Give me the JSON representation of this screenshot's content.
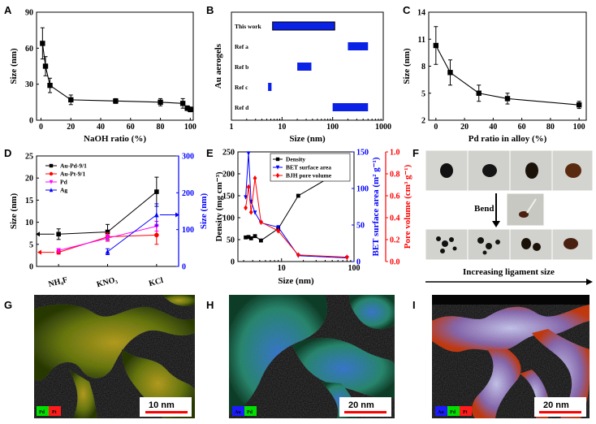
{
  "figure": {
    "panels": {
      "A": {
        "letter": "A",
        "xlabel": "NaOH ratio  (%)",
        "ylabel": "Size (nm)"
      },
      "B": {
        "letter": "B",
        "xlabel": "Size (nm)",
        "ylabel": "Au aerogels"
      },
      "C": {
        "letter": "C",
        "xlabel": "Pd ratio in alloy (%)",
        "ylabel": "Size (nm)"
      },
      "D": {
        "letter": "D",
        "ylabel_left": "Size (nm)",
        "ylabel_right": "Size (nm)"
      },
      "E": {
        "letter": "E",
        "xlabel": "Size (nm)",
        "ylabel_left": "Density (mg cm⁻³)",
        "ylabel_mid": "BET surface area (m² g⁻¹)",
        "ylabel_right": "Pore volume (cm³ g⁻¹)"
      },
      "F": {
        "letter": "F",
        "bend_label": "Bend",
        "caption": "Increasing ligament size"
      },
      "G": {
        "letter": "G",
        "scale_bar": "10 nm",
        "tags": [
          "Pd",
          "Pt"
        ]
      },
      "H": {
        "letter": "H",
        "scale_bar": "20 nm",
        "tags": [
          "Au",
          "Pd"
        ]
      },
      "I": {
        "letter": "I",
        "scale_bar": "20 nm",
        "tags": [
          "Au",
          "Pd",
          "Pt"
        ]
      }
    }
  },
  "colors": {
    "black": "#000000",
    "red": "#ff0000",
    "blue": "#0000ff",
    "magenta": "#ff00ff",
    "bar_blue": "#0a22e6",
    "tag_blue": "#1b1bff",
    "tag_green": "#00e000",
    "tag_red": "#ff1b1b"
  },
  "chart_data": [
    {
      "id": "A",
      "type": "line",
      "xlabel": "NaOH ratio  (%)",
      "ylabel": "Size (nm)",
      "xlim": [
        -3,
        102
      ],
      "ylim": [
        0,
        90
      ],
      "xticks": [
        0,
        20,
        40,
        60,
        80,
        100
      ],
      "yticks": [
        0,
        30,
        60,
        90
      ],
      "series": [
        {
          "x": [
            1,
            3,
            6,
            20,
            50,
            80,
            95,
            98,
            100
          ],
          "y": [
            64,
            45,
            29,
            17,
            16,
            15,
            14,
            10,
            9
          ],
          "err": [
            13,
            8,
            6,
            4,
            2,
            3,
            4,
            2,
            2
          ],
          "color": "#000000",
          "marker": "square"
        }
      ]
    },
    {
      "id": "B",
      "type": "range-bar",
      "xlabel": "Size (nm)",
      "ylabel": "Au aerogels",
      "xscale": "log",
      "xlim": [
        1,
        1000
      ],
      "xticks": [
        1,
        10,
        100,
        1000
      ],
      "categories": [
        "This work",
        "Ref a",
        "Ref b",
        "Ref c",
        "Ref d"
      ],
      "ranges": [
        [
          6.5,
          110
        ],
        [
          200,
          500
        ],
        [
          20,
          38
        ],
        [
          5.3,
          6.2
        ],
        [
          100,
          500
        ]
      ],
      "highlight": 0
    },
    {
      "id": "C",
      "type": "line",
      "xlabel": "Pd ratio in alloy (%)",
      "ylabel": "Size (nm)",
      "xlim": [
        -5,
        105
      ],
      "ylim": [
        2,
        14
      ],
      "xticks": [
        0,
        20,
        40,
        60,
        80,
        100
      ],
      "yticks": [
        2,
        5,
        8,
        11,
        14
      ],
      "series": [
        {
          "x": [
            0,
            10,
            30,
            50,
            100
          ],
          "y": [
            10.3,
            7.3,
            5.0,
            4.4,
            3.7
          ],
          "err": [
            2.1,
            1.4,
            0.9,
            0.6,
            0.4
          ],
          "color": "#000000",
          "marker": "square"
        }
      ]
    },
    {
      "id": "D",
      "type": "line",
      "categories": [
        "NH₄F",
        "KNO₃",
        "KCl"
      ],
      "ylim_left": [
        0,
        25
      ],
      "yticks_left": [
        0,
        5,
        10,
        15,
        20,
        25
      ],
      "ylim_right": [
        0,
        300
      ],
      "yticks_right": [
        0,
        100,
        200,
        300
      ],
      "series": [
        {
          "name": "Au-Pd-9/1",
          "axis": "left",
          "color": "#000000",
          "marker": "square",
          "y": [
            7.3,
            7.8,
            16.9
          ],
          "err": [
            1.2,
            1.7,
            3.3
          ]
        },
        {
          "name": "Au-Pt-9/1",
          "axis": "left",
          "color": "#ff0000",
          "marker": "circle",
          "y": [
            3.2,
            6.7,
            7.1
          ],
          "err": [
            0.4,
            0.9,
            2.1
          ]
        },
        {
          "name": "Pd",
          "axis": "left",
          "color": "#ff00ff",
          "marker": "triangle-down",
          "y": [
            3.6,
            6.4,
            9.1
          ],
          "err": [
            0.4,
            0.7,
            1.1
          ]
        },
        {
          "name": "Ag",
          "axis": "right",
          "color": "#0000ff",
          "marker": "triangle-up",
          "x": [
            1,
            2
          ],
          "y": [
            40,
            140
          ],
          "err": [
            8,
            30
          ]
        }
      ]
    },
    {
      "id": "E",
      "type": "line",
      "xscale": "log",
      "xlabel": "Size (nm)",
      "xlim": [
        2.5,
        100
      ],
      "xticks": [
        10,
        100
      ],
      "ylim_left": [
        0,
        250
      ],
      "yticks_left": [
        0,
        50,
        100,
        150,
        200,
        250
      ],
      "ylim_mid": [
        0,
        150
      ],
      "yticks_mid": [
        0,
        50,
        100,
        150
      ],
      "ylim_right": [
        0,
        1.0
      ],
      "yticks_right": [
        0.0,
        0.2,
        0.4,
        0.6,
        0.8,
        1.0
      ],
      "series": [
        {
          "name": "Density",
          "axis": "left",
          "color": "#000000",
          "marker": "square",
          "x": [
            3.2,
            3.5,
            3.8,
            4.3,
            5.2,
            9,
            17,
            80
          ],
          "y": [
            55,
            56,
            53,
            58,
            48,
            75,
            150,
            215
          ]
        },
        {
          "name": "BET surface area",
          "axis": "mid",
          "color": "#0000ff",
          "marker": "triangle-down",
          "x": [
            3.2,
            3.5,
            3.8,
            4.3,
            5.2,
            9,
            17,
            80
          ],
          "y": [
            88,
            148,
            82,
            67,
            53,
            47,
            8,
            5
          ]
        },
        {
          "name": "BJH pore volume",
          "axis": "right",
          "color": "#ff0000",
          "marker": "diamond",
          "x": [
            3.2,
            3.5,
            3.8,
            4.3,
            5.2,
            9,
            17,
            80
          ],
          "y": [
            0.49,
            0.68,
            0.45,
            0.76,
            0.36,
            0.28,
            0.06,
            0.04
          ]
        }
      ]
    }
  ]
}
